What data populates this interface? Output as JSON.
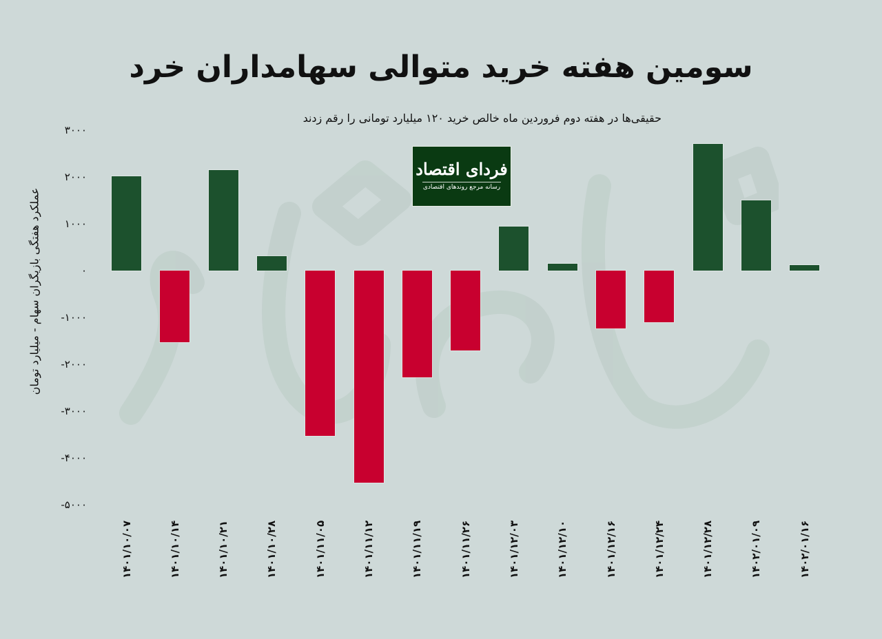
{
  "header": {
    "title": "سومین هفته خرید متوالی سهامداران خرد",
    "subtitle": "حقیقی‌ها در هفته دوم فروردین ماه خالص خرید ۱۲۰ میلیارد تومانی را رقم زدند"
  },
  "logo": {
    "name": "فردای اقتصاد",
    "tagline": "رسانه مرجع روندهای اقتصادی"
  },
  "colors": {
    "background": "#ced9d8",
    "positive": "#1c512d",
    "negative": "#c8002f",
    "watermark": "#c2d0cc",
    "logo_bg": "#0a3a12"
  },
  "chart_data": {
    "type": "bar",
    "title": "سومین هفته خرید متوالی سهامداران خرد",
    "subtitle": "حقیقی‌ها در هفته دوم فروردین ماه خالص خرید ۱۲۰ میلیارد تومانی را رقم زدند",
    "xlabel": "",
    "ylabel": "عملکرد هفتگی بازیگران سهام - میلیارد تومان",
    "ylim": [
      -5000,
      3000
    ],
    "yticks": [
      3000,
      2000,
      1000,
      0,
      -1000,
      -2000,
      -3000,
      -4000,
      -5000
    ],
    "ytick_labels": [
      "۳۰۰۰",
      "۲۰۰۰",
      "۱۰۰۰",
      "۰",
      "-۱۰۰۰",
      "-۲۰۰۰",
      "-۳۰۰۰",
      "-۴۰۰۰",
      "-۵۰۰۰"
    ],
    "grid": false,
    "legend": null,
    "categories": [
      "۱۴۰۱/۱۰/۰۷",
      "۱۴۰۱/۱۰/۱۴",
      "۱۴۰۱/۱۰/۲۱",
      "۱۴۰۱/۱۰/۲۸",
      "۱۴۰۱/۱۱/۰۵",
      "۱۴۰۱/۱۱/۱۲",
      "۱۴۰۱/۱۱/۱۹",
      "۱۴۰۱/۱۱/۲۶",
      "۱۴۰۱/۱۲/۰۳",
      "۱۴۰۱/۱۲/۱۰",
      "۱۴۰۱/۱۲/۱۶",
      "۱۴۰۱/۱۲/۲۴",
      "۱۴۰۱/۱۲/۲۸",
      "۱۴۰۲/۰۱/۰۹",
      "۱۴۰۲/۰۱/۱۶"
    ],
    "categories_latin": [
      "1401/10/07",
      "1401/10/14",
      "1401/10/21",
      "1401/10/28",
      "1401/11/05",
      "1401/11/12",
      "1401/11/19",
      "1401/11/26",
      "1401/12/03",
      "1401/12/10",
      "1401/12/16",
      "1401/12/24",
      "1401/12/28",
      "1402/01/09",
      "1402/01/16"
    ],
    "values": [
      2020,
      -1530,
      2150,
      310,
      -3530,
      -4530,
      -2280,
      -1710,
      940,
      150,
      -1230,
      -1100,
      2710,
      1500,
      120
    ],
    "colors_rule": "positive=green, negative=red"
  }
}
